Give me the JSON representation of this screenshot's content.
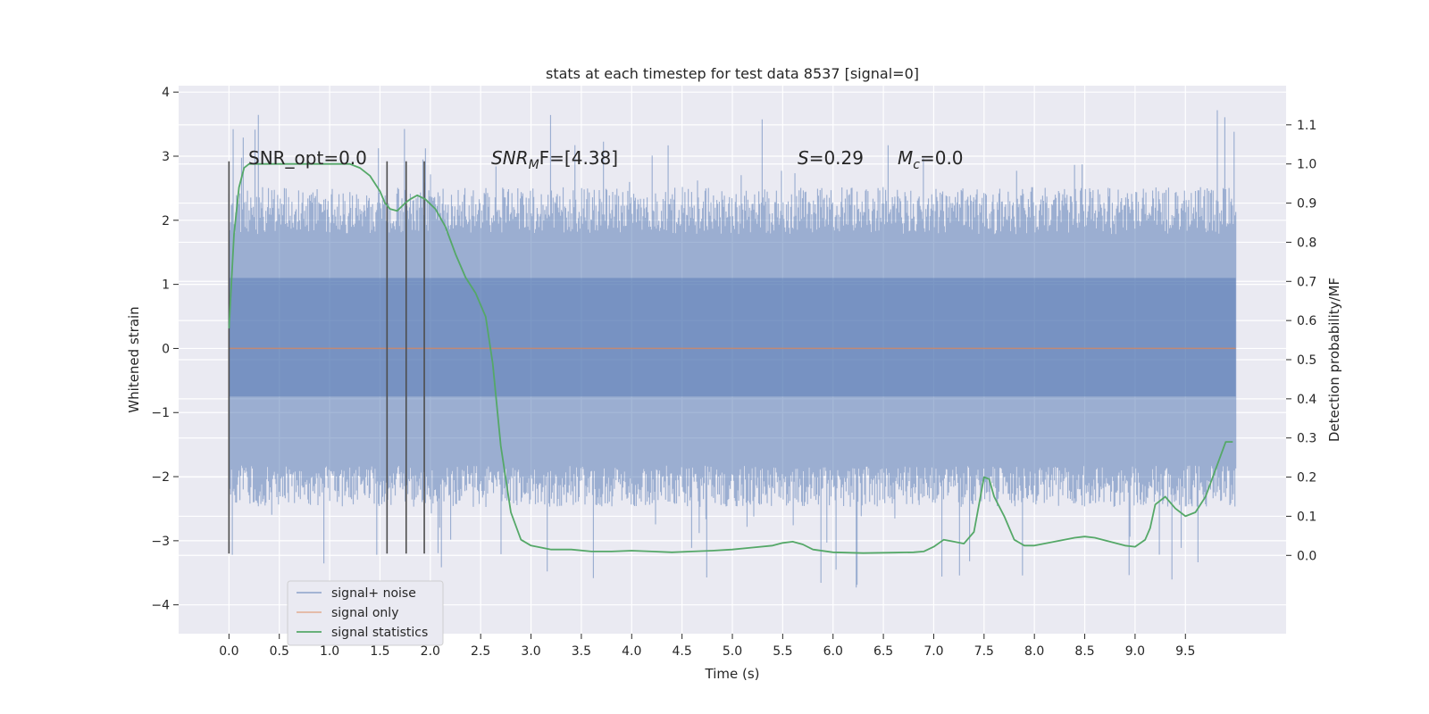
{
  "chart_data": {
    "type": "line",
    "title": "stats at each timestep for test data 8537 [signal=0]",
    "xlabel": "Time (s)",
    "ylabel": "Whitened strain",
    "y2label": "Detection probability/MF",
    "xlim": [
      -0.5,
      10.5
    ],
    "ylim": [
      -4.45,
      4.1
    ],
    "y2lim": [
      -0.2,
      1.2
    ],
    "x_ticks": [
      "0.0",
      "0.5",
      "1.0",
      "1.5",
      "2.0",
      "2.5",
      "3.0",
      "3.5",
      "4.0",
      "4.5",
      "5.0",
      "5.5",
      "6.0",
      "6.5",
      "7.0",
      "7.5",
      "8.0",
      "8.5",
      "9.0",
      "9.5"
    ],
    "y_ticks": [
      "−4",
      "−3",
      "−2",
      "−1",
      "0",
      "1",
      "2",
      "3",
      "4"
    ],
    "y2_ticks": [
      "0.0",
      "0.1",
      "0.2",
      "0.3",
      "0.4",
      "0.5",
      "0.6",
      "0.7",
      "0.8",
      "0.9",
      "1.0",
      "1.1"
    ],
    "grid": true,
    "legend_position": "lower-left",
    "annotations": {
      "snr_opt": "SNR_opt=0.0",
      "snr_mf_main": "SNR",
      "snr_mf_sub": "M",
      "snr_mf_rest": "F=[4.38]",
      "s_label": "S",
      "s_value": "=0.29",
      "mc_main": "M",
      "mc_sub": "c",
      "mc_value": "=0.0"
    },
    "vertical_lines": {
      "x": [
        0.0,
        1.57,
        1.76,
        1.94
      ],
      "y_range": [
        -3.2,
        2.92
      ],
      "color": "#4d4d4d"
    },
    "series": [
      {
        "name": "signal+ noise",
        "color": "#4c72b0",
        "axis": "left",
        "x_range": [
          0.0,
          10.0
        ],
        "envelope_samples": 1200,
        "band_low": -0.75,
        "band_high": 1.1,
        "typical_peak": 2.1,
        "typical_trough": -2.15,
        "max": 3.78,
        "min": -3.75
      },
      {
        "name": "signal only",
        "color": "#dd8452",
        "axis": "left",
        "x": [
          0.0,
          10.0
        ],
        "y": [
          0.0,
          0.0
        ]
      },
      {
        "name": "signal statistics",
        "color": "#55a868",
        "axis": "right",
        "x": [
          0.0,
          0.05,
          0.1,
          0.15,
          0.2,
          0.4,
          0.6,
          0.8,
          1.0,
          1.2,
          1.3,
          1.4,
          1.5,
          1.55,
          1.6,
          1.67,
          1.75,
          1.8,
          1.87,
          1.95,
          2.05,
          2.15,
          2.25,
          2.35,
          2.45,
          2.55,
          2.62,
          2.7,
          2.8,
          2.9,
          3.0,
          3.2,
          3.4,
          3.6,
          3.8,
          4.0,
          4.2,
          4.4,
          4.6,
          4.8,
          5.0,
          5.2,
          5.4,
          5.5,
          5.6,
          5.7,
          5.8,
          6.0,
          6.3,
          6.6,
          6.8,
          6.9,
          7.0,
          7.1,
          7.2,
          7.3,
          7.4,
          7.5,
          7.55,
          7.6,
          7.7,
          7.8,
          7.9,
          8.0,
          8.2,
          8.4,
          8.5,
          8.6,
          8.75,
          8.9,
          9.0,
          9.1,
          9.15,
          9.2,
          9.3,
          9.4,
          9.5,
          9.6,
          9.7,
          9.8,
          9.9,
          9.97
        ],
        "y": [
          0.58,
          0.82,
          0.94,
          0.99,
          1.0,
          1.0,
          1.0,
          1.0,
          1.0,
          1.0,
          0.99,
          0.97,
          0.93,
          0.9,
          0.885,
          0.88,
          0.9,
          0.91,
          0.92,
          0.91,
          0.885,
          0.84,
          0.77,
          0.71,
          0.67,
          0.61,
          0.49,
          0.28,
          0.11,
          0.04,
          0.025,
          0.015,
          0.015,
          0.01,
          0.01,
          0.012,
          0.01,
          0.008,
          0.01,
          0.012,
          0.015,
          0.02,
          0.025,
          0.032,
          0.035,
          0.028,
          0.015,
          0.008,
          0.006,
          0.007,
          0.008,
          0.01,
          0.022,
          0.04,
          0.035,
          0.03,
          0.06,
          0.2,
          0.195,
          0.15,
          0.1,
          0.04,
          0.025,
          0.025,
          0.035,
          0.045,
          0.048,
          0.045,
          0.035,
          0.025,
          0.022,
          0.04,
          0.07,
          0.13,
          0.15,
          0.12,
          0.1,
          0.11,
          0.15,
          0.22,
          0.29,
          0.29
        ]
      }
    ]
  }
}
